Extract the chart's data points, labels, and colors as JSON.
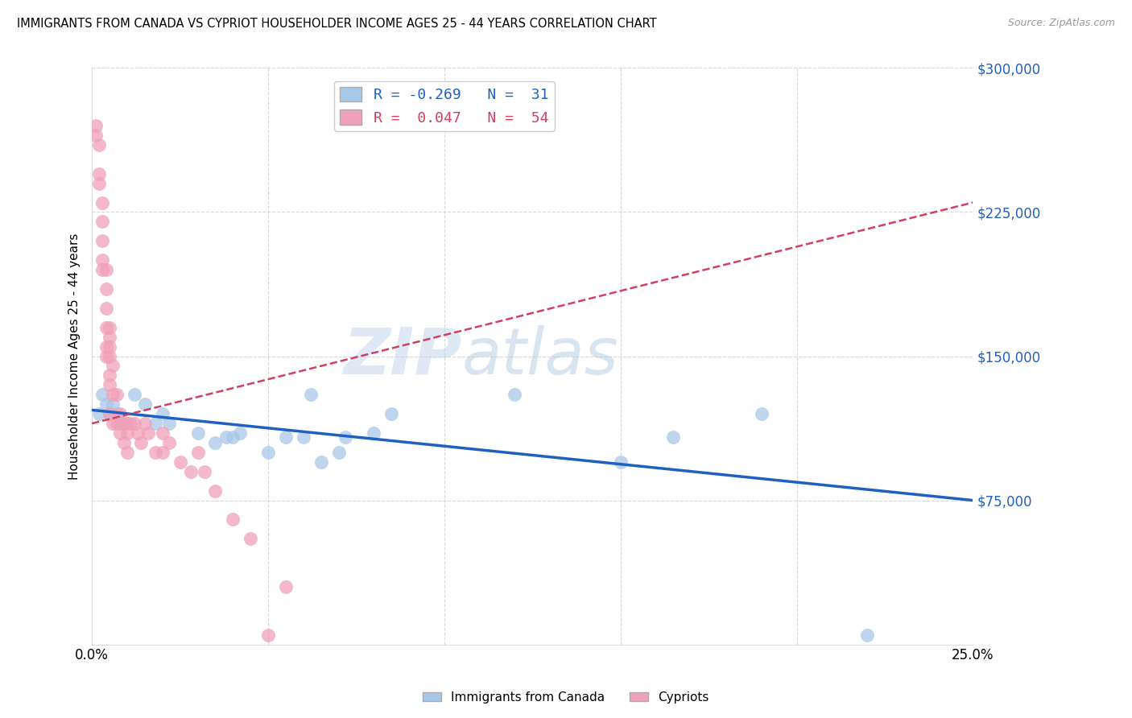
{
  "title": "IMMIGRANTS FROM CANADA VS CYPRIOT HOUSEHOLDER INCOME AGES 25 - 44 YEARS CORRELATION CHART",
  "source": "Source: ZipAtlas.com",
  "ylabel": "Householder Income Ages 25 - 44 years",
  "xlim": [
    0.0,
    0.25
  ],
  "ylim": [
    0,
    300000
  ],
  "xticks": [
    0.0,
    0.05,
    0.1,
    0.15,
    0.2,
    0.25
  ],
  "xticklabels": [
    "0.0%",
    "",
    "",
    "",
    "",
    "25.0%"
  ],
  "ytick_labels_right": [
    "$75,000",
    "$150,000",
    "$225,000",
    "$300,000"
  ],
  "ytick_values_right": [
    75000,
    150000,
    225000,
    300000
  ],
  "watermark_zip": "ZIP",
  "watermark_atlas": "atlas",
  "legend_line1": "R = -0.269   N =  31",
  "legend_line2": "R =  0.047   N =  54",
  "color_blue": "#a8c8e8",
  "color_pink": "#f0a0b8",
  "line_blue": "#2060c0",
  "line_pink": "#d04060",
  "grid_color": "#d8d8d8",
  "canada_x": [
    0.002,
    0.003,
    0.004,
    0.005,
    0.006,
    0.007,
    0.008,
    0.012,
    0.015,
    0.018,
    0.02,
    0.022,
    0.03,
    0.035,
    0.038,
    0.04,
    0.042,
    0.05,
    0.055,
    0.06,
    0.062,
    0.065,
    0.07,
    0.072,
    0.08,
    0.085,
    0.12,
    0.15,
    0.165,
    0.19,
    0.22
  ],
  "canada_y": [
    120000,
    130000,
    125000,
    120000,
    125000,
    120000,
    115000,
    130000,
    125000,
    115000,
    120000,
    115000,
    110000,
    105000,
    108000,
    108000,
    110000,
    100000,
    108000,
    108000,
    130000,
    95000,
    100000,
    108000,
    110000,
    120000,
    130000,
    95000,
    108000,
    120000,
    5000
  ],
  "cypriot_x": [
    0.001,
    0.001,
    0.002,
    0.002,
    0.002,
    0.003,
    0.003,
    0.003,
    0.003,
    0.003,
    0.004,
    0.004,
    0.004,
    0.004,
    0.004,
    0.004,
    0.005,
    0.005,
    0.005,
    0.005,
    0.005,
    0.005,
    0.005,
    0.006,
    0.006,
    0.006,
    0.007,
    0.007,
    0.008,
    0.008,
    0.009,
    0.009,
    0.01,
    0.01,
    0.01,
    0.011,
    0.012,
    0.013,
    0.014,
    0.015,
    0.016,
    0.018,
    0.02,
    0.02,
    0.022,
    0.025,
    0.028,
    0.03,
    0.032,
    0.035,
    0.04,
    0.045,
    0.05,
    0.055
  ],
  "cypriot_y": [
    270000,
    265000,
    260000,
    245000,
    240000,
    230000,
    220000,
    210000,
    200000,
    195000,
    195000,
    185000,
    175000,
    165000,
    155000,
    150000,
    165000,
    160000,
    155000,
    150000,
    140000,
    135000,
    120000,
    145000,
    130000,
    115000,
    130000,
    115000,
    120000,
    110000,
    115000,
    105000,
    115000,
    110000,
    100000,
    115000,
    115000,
    110000,
    105000,
    115000,
    110000,
    100000,
    110000,
    100000,
    105000,
    95000,
    90000,
    100000,
    90000,
    80000,
    65000,
    55000,
    5000,
    30000
  ]
}
